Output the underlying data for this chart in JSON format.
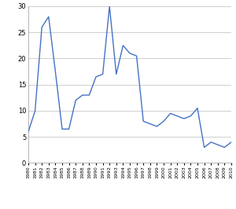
{
  "years": [
    1980,
    1981,
    1982,
    1983,
    1984,
    1985,
    1986,
    1987,
    1988,
    1989,
    1990,
    1991,
    1992,
    1993,
    1994,
    1995,
    1996,
    1997,
    1998,
    1999,
    2000,
    2001,
    2002,
    2003,
    2004,
    2005,
    2006,
    2007,
    2008,
    2009,
    2010
  ],
  "values": [
    6.0,
    10.0,
    26.0,
    28.0,
    17.5,
    6.5,
    6.5,
    12.0,
    13.0,
    13.0,
    16.5,
    17.0,
    30.0,
    17.0,
    22.5,
    21.0,
    20.5,
    8.0,
    7.5,
    7.0,
    8.0,
    9.5,
    9.0,
    8.5,
    9.0,
    10.5,
    3.0,
    4.0,
    3.5,
    3.0,
    4.0
  ],
  "line_color": "#4472c4",
  "ylim": [
    0,
    30
  ],
  "yticks": [
    0,
    5,
    10,
    15,
    20,
    25,
    30
  ],
  "grid_color": "#c8c8c8",
  "bg_color": "#ffffff",
  "line_width": 1.0
}
